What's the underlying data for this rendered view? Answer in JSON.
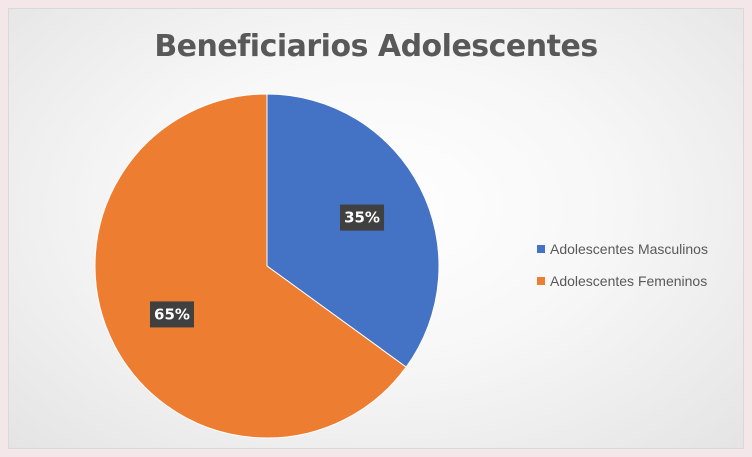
{
  "chart_data": {
    "type": "pie",
    "title": "Beneficiarios Adolescentes",
    "categories": [
      "Adolescentes Masculinos",
      "Adolescentes Femeninos"
    ],
    "values": [
      35,
      65
    ],
    "data_labels": [
      "35%",
      "65%"
    ],
    "colors": [
      "#4472c4",
      "#ed7d31"
    ],
    "legend_position": "right",
    "start_angle": "top",
    "direction": "clockwise"
  }
}
